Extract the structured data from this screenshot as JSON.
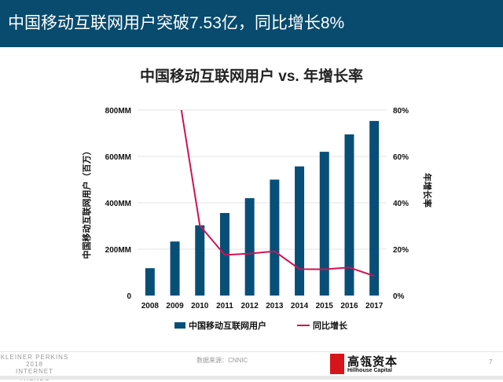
{
  "header": {
    "title": "中国移动互联网用户突破7.53亿，同比增长8%"
  },
  "chart_data": {
    "type": "bar+line",
    "title": "中国移动互联网用户 vs. 年增长率",
    "categories": [
      "2008",
      "2009",
      "2010",
      "2011",
      "2012",
      "2013",
      "2014",
      "2015",
      "2016",
      "2017"
    ],
    "series": [
      {
        "name": "中国移动互联网用户",
        "type": "bar",
        "axis": "left",
        "color": "#084f78",
        "values": [
          118,
          233,
          303,
          356,
          420,
          500,
          557,
          620,
          695,
          753
        ]
      },
      {
        "name": "同比增长",
        "type": "line",
        "axis": "right",
        "color": "#d0134f",
        "values": [
          null,
          97.5,
          30.2,
          17.5,
          18.1,
          19.1,
          11.4,
          11.3,
          12.1,
          8.4
        ]
      }
    ],
    "ylabel": "中国移动互联网用户（百万）",
    "y2label": "年增长率",
    "ylim": [
      0,
      800
    ],
    "y2lim": [
      0,
      80
    ],
    "yticks": [
      "0",
      "200MM",
      "400MM",
      "600MM",
      "800MM"
    ],
    "y2ticks": [
      "0%",
      "20%",
      "40%",
      "60%",
      "80%"
    ],
    "grid": true,
    "legend": "bottom"
  },
  "footer": {
    "brand_lines": [
      "KLEINER PERKINS",
      "2018",
      "INTERNET TRENDS"
    ],
    "source": "数据来源：CNNIC",
    "logo_cn": "高瓴资本",
    "logo_en": "Hillhouse Capital",
    "logo_badge": "HILLHOUSE",
    "page": "7"
  }
}
